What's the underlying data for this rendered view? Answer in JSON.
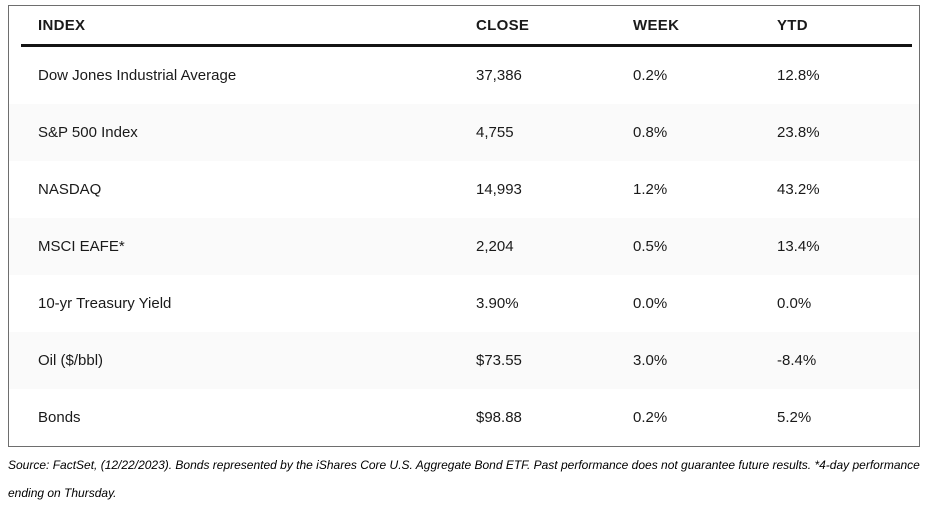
{
  "colors": {
    "table_border": "#6e6e6e",
    "header_rule": "#141414",
    "alt_row_bg": "#fafafa",
    "text": "#1a1a1a"
  },
  "chart_data": {
    "type": "table",
    "columns": [
      "INDEX",
      "CLOSE",
      "WEEK",
      "YTD"
    ],
    "rows": [
      {
        "index": "Dow Jones Industrial Average",
        "close": "37,386",
        "week": "0.2%",
        "ytd": "12.8%"
      },
      {
        "index": "S&P 500 Index",
        "close": "4,755",
        "week": "0.8%",
        "ytd": "23.8%"
      },
      {
        "index": "NASDAQ",
        "close": "14,993",
        "week": "1.2%",
        "ytd": "43.2%"
      },
      {
        "index": "MSCI EAFE*",
        "close": "2,204",
        "week": "0.5%",
        "ytd": "13.4%"
      },
      {
        "index": "10-yr Treasury Yield",
        "close": "3.90%",
        "week": "0.0%",
        "ytd": "0.0%"
      },
      {
        "index": "Oil ($/bbl)",
        "close": "$73.55",
        "week": "3.0%",
        "ytd": "-8.4%"
      },
      {
        "index": "Bonds",
        "close": "$98.88",
        "week": "0.2%",
        "ytd": "5.2%"
      }
    ]
  },
  "footnote": {
    "line1": "Source: FactSet, (12/22/2023). Bonds represented by the iShares Core U.S. Aggregate Bond ETF. Past performance does not guarantee future results. *4-day performance",
    "line2": "ending on Thursday."
  }
}
